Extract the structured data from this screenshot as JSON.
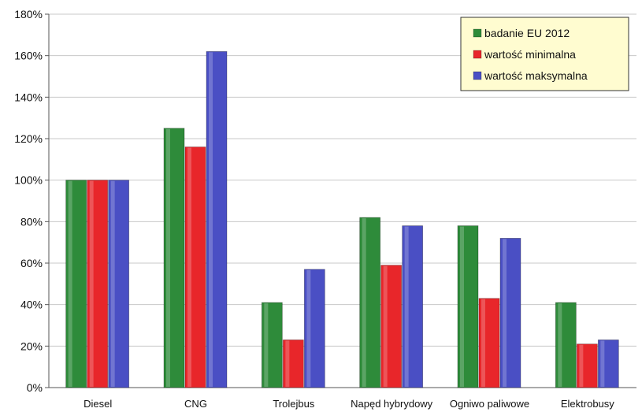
{
  "chart_data": {
    "type": "bar",
    "title": "",
    "xlabel": "",
    "ylabel": "",
    "categories": [
      "Diesel",
      "CNG",
      "Trolejbus",
      "Napęd hybrydowy",
      "Ogniwo paliwowe",
      "Elektrobusy"
    ],
    "series": [
      {
        "name": "badanie EU 2012",
        "color": "#2e8b3a",
        "values": [
          100,
          125,
          41,
          82,
          78,
          41
        ]
      },
      {
        "name": "wartość minimalna",
        "color": "#e8262a",
        "values": [
          100,
          116,
          23,
          59,
          43,
          21
        ]
      },
      {
        "name": "wartość maksymalna",
        "color": "#4a4fc4",
        "values": [
          100,
          162,
          57,
          78,
          72,
          23
        ]
      }
    ],
    "ylim": [
      0,
      180
    ],
    "yticks": [
      0,
      20,
      40,
      60,
      80,
      100,
      120,
      140,
      160,
      180
    ],
    "ytick_labels": [
      "0%",
      "20%",
      "40%",
      "60%",
      "80%",
      "100%",
      "120%",
      "140%",
      "160%",
      "180%"
    ],
    "grid": true,
    "legend_position": "top-right",
    "legend_background": "#fffcd0"
  }
}
